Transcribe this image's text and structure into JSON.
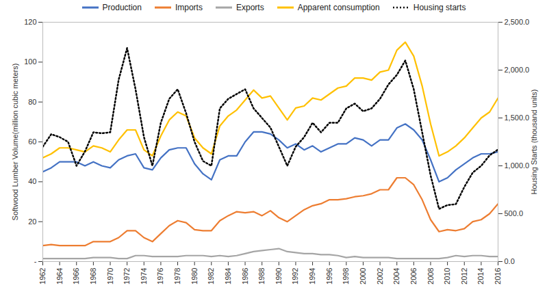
{
  "chart_data": {
    "type": "line",
    "legend": "top",
    "grid": false,
    "ylabel": "Softwood Lumber Volume(million cubic meters)",
    "y2label": "Housing Starts (thousand units)",
    "x": [
      1962,
      1963,
      1964,
      1965,
      1966,
      1967,
      1968,
      1969,
      1970,
      1971,
      1972,
      1973,
      1974,
      1975,
      1976,
      1977,
      1978,
      1979,
      1980,
      1981,
      1982,
      1983,
      1984,
      1985,
      1986,
      1987,
      1988,
      1989,
      1990,
      1991,
      1992,
      1993,
      1994,
      1995,
      1996,
      1997,
      1998,
      1999,
      2000,
      2001,
      2002,
      2003,
      2004,
      2005,
      2006,
      2007,
      2008,
      2009,
      2010,
      2011,
      2012,
      2013,
      2014,
      2015,
      2016
    ],
    "xlim": [
      1962,
      2016
    ],
    "xticks": [
      1962,
      1964,
      1966,
      1968,
      1970,
      1972,
      1974,
      1976,
      1978,
      1980,
      1982,
      1984,
      1986,
      1988,
      1990,
      1992,
      1994,
      1996,
      1998,
      2000,
      2002,
      2004,
      2006,
      2008,
      2010,
      2012,
      2014,
      2016
    ],
    "ylim": [
      0,
      120
    ],
    "yticks": [
      {
        "value": 0,
        "label": "-"
      },
      20,
      40,
      60,
      80,
      100,
      120
    ],
    "y2lim": [
      0,
      2500
    ],
    "y2ticks": [
      {
        "value": 0,
        "label": "0.0"
      },
      {
        "value": 500,
        "label": "500.0"
      },
      {
        "value": 1000,
        "label": "1,000.0"
      },
      {
        "value": 1500,
        "label": "1,500.0"
      },
      {
        "value": 2000,
        "label": "2,000.0"
      },
      {
        "value": 2500,
        "label": "2,500.0"
      }
    ],
    "series": [
      {
        "name": "Production",
        "color": "#4472c4",
        "line_style": "solid",
        "values": [
          45,
          47,
          50,
          50,
          50,
          48,
          50,
          48,
          47,
          51,
          53,
          54,
          47,
          46,
          52,
          56,
          57,
          57,
          49,
          44,
          41,
          51,
          53,
          53,
          60,
          65,
          65,
          64,
          61,
          57,
          59,
          56,
          58,
          55,
          57,
          59,
          59,
          62,
          61,
          58,
          61,
          61,
          67,
          69,
          66,
          61,
          51,
          40,
          42,
          46,
          49,
          52,
          54,
          54,
          55
        ]
      },
      {
        "name": "Imports",
        "color": "#ed7d31",
        "line_style": "solid",
        "values": [
          8,
          8.5,
          8,
          8,
          8,
          8,
          10,
          10,
          10,
          12,
          15.5,
          15.5,
          12,
          10,
          14,
          18,
          20.5,
          19.5,
          16,
          15.5,
          15.5,
          20.5,
          23,
          25,
          24.5,
          25,
          23,
          25.5,
          22,
          20,
          23,
          26,
          28,
          29,
          31,
          31,
          31.5,
          32.5,
          33,
          34,
          36,
          36,
          42,
          42,
          38.5,
          31,
          21,
          15,
          16,
          15.5,
          16.5,
          20,
          21,
          24,
          29
        ]
      },
      {
        "name": "Exports",
        "color": "#a5a5a5",
        "line_style": "solid",
        "values": [
          1.5,
          1.5,
          1.5,
          1.5,
          1.5,
          1.5,
          2,
          2,
          2,
          1.5,
          1.5,
          3,
          3,
          2.5,
          2.5,
          2.5,
          2.5,
          3,
          3,
          3,
          2.5,
          3,
          2.5,
          3,
          4,
          5,
          5.5,
          6,
          6.5,
          5,
          4.5,
          4,
          4,
          3.5,
          3.5,
          3,
          2,
          2.5,
          2,
          2,
          2,
          2,
          1.5,
          1.5,
          1.5,
          1.5,
          1.5,
          1.5,
          2,
          3,
          2.5,
          3,
          3,
          2.5,
          2.5
        ]
      },
      {
        "name": "Apparent consumption",
        "color": "#ffc000",
        "line_style": "solid",
        "values": [
          52,
          54,
          57,
          57,
          56,
          55,
          58,
          57,
          55,
          61,
          66,
          66,
          56,
          53,
          63,
          71,
          75,
          73,
          62,
          57,
          54,
          68,
          73,
          76,
          81,
          86,
          82,
          83,
          77,
          71,
          77,
          78,
          82,
          81,
          84,
          87,
          88,
          92,
          92,
          91,
          95,
          96,
          106,
          110,
          103,
          88,
          69,
          53,
          55,
          58,
          62,
          67,
          72,
          75,
          82
        ]
      },
      {
        "name": "Housing starts",
        "color": "#000000",
        "line_style": "dotted",
        "axis": "y2",
        "values": [
          1200,
          1330,
          1300,
          1250,
          1000,
          1150,
          1350,
          1340,
          1350,
          1900,
          2230,
          1800,
          1300,
          1000,
          1450,
          1700,
          1800,
          1550,
          1250,
          1050,
          1000,
          1600,
          1700,
          1750,
          1800,
          1600,
          1500,
          1400,
          1200,
          1000,
          1200,
          1300,
          1450,
          1350,
          1450,
          1450,
          1600,
          1650,
          1570,
          1600,
          1700,
          1850,
          1950,
          2100,
          1800,
          1350,
          900,
          550,
          590,
          600,
          780,
          930,
          1000,
          1110,
          1170
        ]
      }
    ]
  }
}
